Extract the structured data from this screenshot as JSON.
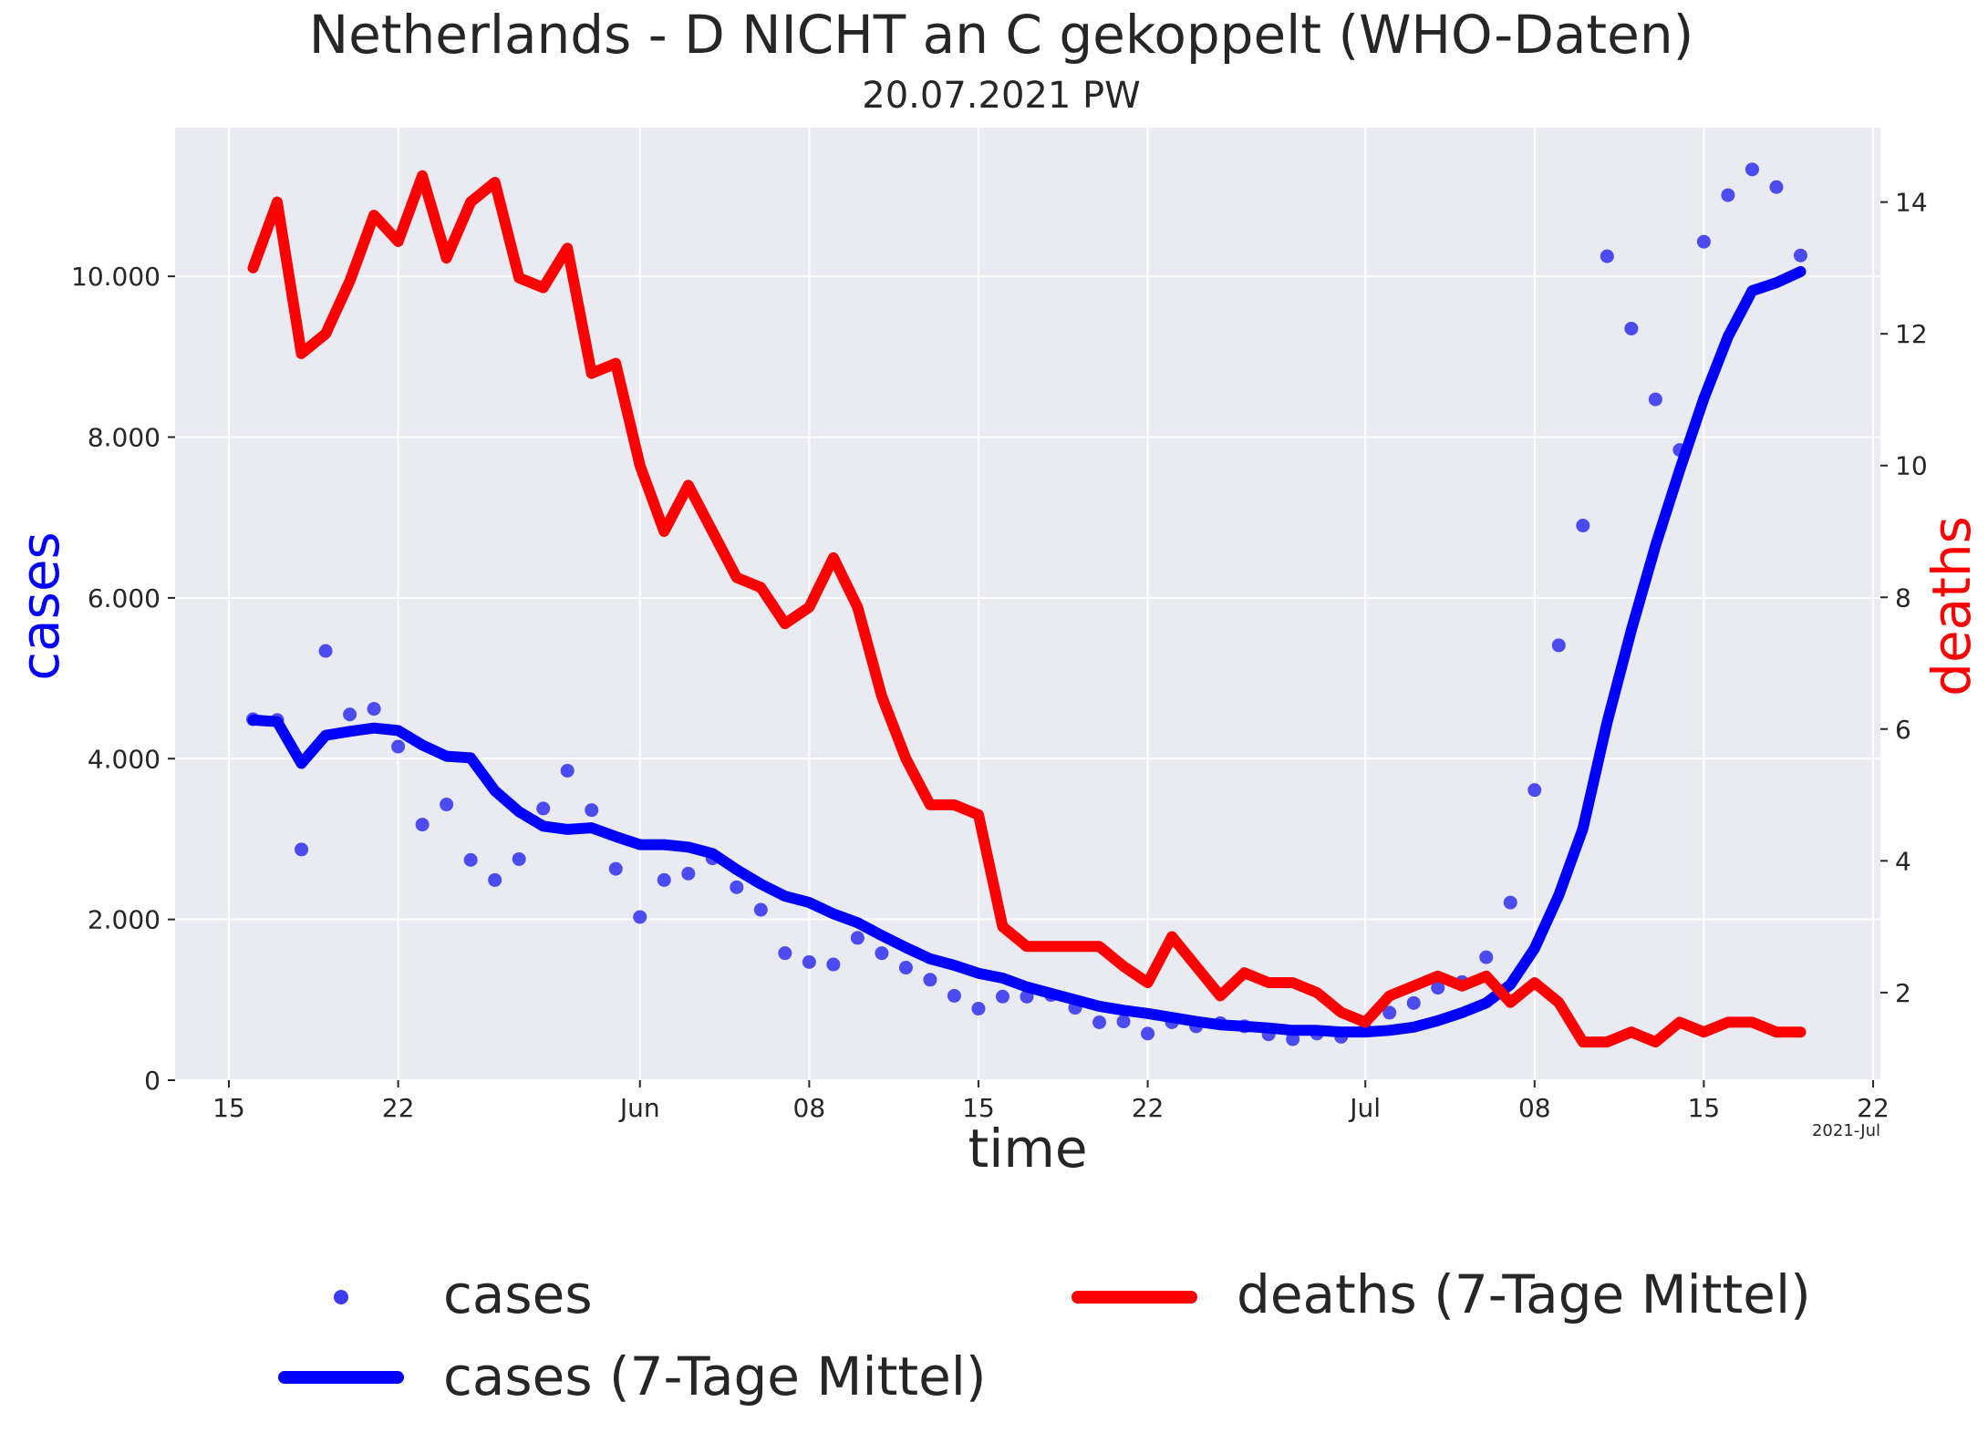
{
  "chart_data": {
    "type": "line",
    "title": "Netherlands - D NICHT an C gekoppelt  (WHO-Daten)",
    "subtitle": "20.07.2021 PW",
    "xlabel": "time",
    "ylabel_left": "cases",
    "ylabel_right": "deaths",
    "x_date_range": [
      "2021-05-15",
      "2021-07-22"
    ],
    "x_ticks": [
      {
        "date": "2021-05-15",
        "label": "15"
      },
      {
        "date": "2021-05-22",
        "label": "22"
      },
      {
        "date": "2021-06-01",
        "label": "Jun"
      },
      {
        "date": "2021-06-08",
        "label": "08"
      },
      {
        "date": "2021-06-15",
        "label": "15"
      },
      {
        "date": "2021-06-22",
        "label": "22"
      },
      {
        "date": "2021-07-01",
        "label": "Jul"
      },
      {
        "date": "2021-07-08",
        "label": "08"
      },
      {
        "date": "2021-07-15",
        "label": "15"
      },
      {
        "date": "2021-07-22",
        "label": "22"
      }
    ],
    "x_offset_label": "2021-Jul",
    "ylim_left": [
      0,
      11850
    ],
    "y_ticks_left": [
      {
        "value": 0,
        "label": "0"
      },
      {
        "value": 2000,
        "label": "2.000"
      },
      {
        "value": 4000,
        "label": "4.000"
      },
      {
        "value": 6000,
        "label": "6.000"
      },
      {
        "value": 8000,
        "label": "8.000"
      },
      {
        "value": 10000,
        "label": "10.000"
      }
    ],
    "ylim_right": [
      0.67,
      15.13
    ],
    "y_ticks_right": [
      {
        "value": 2,
        "label": "2"
      },
      {
        "value": 4,
        "label": "4"
      },
      {
        "value": 6,
        "label": "6"
      },
      {
        "value": 8,
        "label": "8"
      },
      {
        "value": 10,
        "label": "10"
      },
      {
        "value": 12,
        "label": "12"
      },
      {
        "value": 14,
        "label": "14"
      }
    ],
    "grid": true,
    "legend_position": "bottom",
    "series": [
      {
        "name": "cases",
        "kind": "scatter",
        "axis": "left",
        "color": "#3a3af0",
        "start_date": "2021-05-16",
        "values": [
          4490,
          4480,
          2870,
          5340,
          4550,
          4620,
          4150,
          3180,
          3430,
          2740,
          2490,
          2750,
          3380,
          3850,
          3360,
          2630,
          2030,
          2490,
          2570,
          2760,
          2400,
          2120,
          1580,
          1470,
          1440,
          1770,
          1580,
          1400,
          1250,
          1050,
          890,
          1040,
          1040,
          1060,
          900,
          720,
          730,
          580,
          720,
          670,
          710,
          670,
          570,
          510,
          580,
          540,
          630,
          840,
          960,
          1150,
          1220,
          1530,
          2210,
          3610,
          5410,
          6900,
          10250,
          9350,
          8470,
          7840,
          10430,
          11010,
          11330,
          11110,
          10260
        ]
      },
      {
        "name": "cases (7-Tage Mittel)",
        "kind": "line",
        "axis": "left",
        "color": "#0000ff",
        "start_date": "2021-05-16",
        "values": [
          4480,
          4460,
          3940,
          4290,
          4340,
          4380,
          4350,
          4170,
          4030,
          4010,
          3600,
          3340,
          3160,
          3120,
          3140,
          3030,
          2930,
          2930,
          2900,
          2820,
          2620,
          2440,
          2290,
          2210,
          2070,
          1960,
          1800,
          1650,
          1510,
          1430,
          1330,
          1270,
          1160,
          1080,
          1000,
          920,
          870,
          830,
          780,
          730,
          690,
          670,
          650,
          620,
          620,
          600,
          600,
          620,
          660,
          740,
          840,
          960,
          1190,
          1640,
          2300,
          3130,
          4450,
          5600,
          6650,
          7590,
          8480,
          9250,
          9820,
          9920,
          10060
        ]
      },
      {
        "name": "deaths (7-Tage Mittel)",
        "kind": "line",
        "axis": "right",
        "color": "#ff0000",
        "start_date": "2021-05-16",
        "values": [
          13.0,
          14.0,
          11.7,
          12.0,
          12.8,
          13.8,
          13.4,
          14.4,
          13.15,
          14.0,
          14.3,
          12.85,
          12.7,
          13.3,
          11.4,
          11.55,
          10.0,
          9.0,
          9.7,
          9.0,
          8.3,
          8.15,
          7.6,
          7.85,
          8.6,
          7.85,
          6.5,
          5.55,
          4.85,
          4.85,
          4.7,
          3.0,
          2.7,
          2.7,
          2.7,
          2.7,
          2.4,
          2.15,
          2.85,
          2.4,
          1.95,
          2.3,
          2.15,
          2.15,
          2.0,
          1.7,
          1.55,
          1.95,
          2.1,
          2.25,
          2.1,
          2.25,
          1.85,
          2.15,
          1.85,
          1.25,
          1.25,
          1.4,
          1.25,
          1.55,
          1.4,
          1.55,
          1.55,
          1.4,
          1.4
        ]
      }
    ]
  },
  "colors": {
    "plot_background": "#eaeaf2",
    "grid": "#ffffff",
    "cases_label": "#0000ff",
    "deaths_label": "#ff0000",
    "text": "#262626"
  },
  "legend": {
    "entries": [
      {
        "label": "cases",
        "marker": "dot",
        "color": "#3a3af0"
      },
      {
        "label": "cases (7-Tage Mittel)",
        "marker": "line",
        "color": "#0000ff"
      },
      {
        "label": "deaths (7-Tage Mittel)",
        "marker": "line",
        "color": "#ff0000"
      }
    ]
  }
}
